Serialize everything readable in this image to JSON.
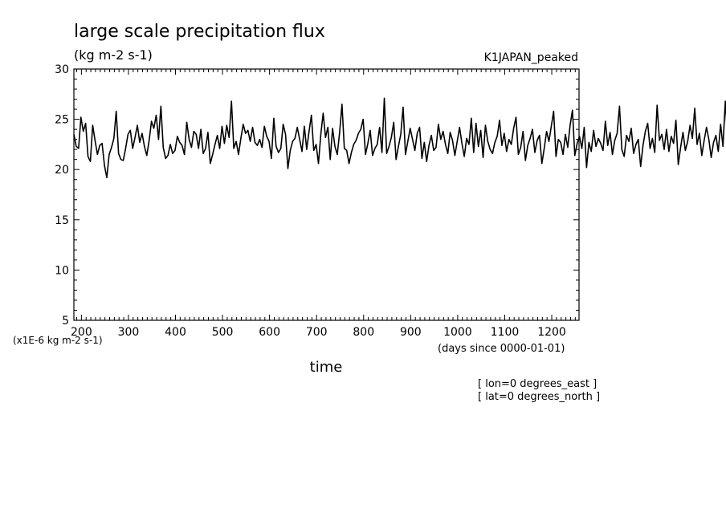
{
  "chart_data": {
    "type": "line",
    "title": "large scale precipitation flux",
    "units": "(kg m-2 s-1)",
    "dataset_label": "K1JAPAN_peaked",
    "xlabel": "time",
    "x_units": "(days since 0000-01-01)",
    "y_scale_note": "(x1E-6 kg m-2 s-1)",
    "coords": [
      "[ lon=0 degrees_east ]",
      "[ lat=0 degrees_north ]"
    ],
    "xlim": [
      184,
      1258
    ],
    "ylim": [
      5,
      30
    ],
    "x_ticks": [
      200,
      300,
      400,
      500,
      600,
      700,
      800,
      900,
      1000,
      1100,
      1200
    ],
    "x_tick_labels": [
      "200",
      "300",
      "400",
      "500",
      "600",
      "700",
      "800",
      "900",
      "1000",
      "1100",
      "1200"
    ],
    "y_ticks": [
      5,
      10,
      15,
      20,
      25,
      30
    ],
    "y_tick_labels": [
      "5",
      "10",
      "15",
      "20",
      "25",
      "30"
    ],
    "x_step": 5,
    "series": [
      {
        "values": [
          23.5,
          22.3,
          22.1,
          25.2,
          23.8,
          24.6,
          21.3,
          20.8,
          24.4,
          22.9,
          21.5,
          22.4,
          22.6,
          20.4,
          19.2,
          21.5,
          22.2,
          23.1,
          25.8,
          21.6,
          21.0,
          20.9,
          22.1,
          23.5,
          23.9,
          22.1,
          23.2,
          24.4,
          22.7,
          23.6,
          22.3,
          21.4,
          22.9,
          24.8,
          24.1,
          25.4,
          23.0,
          26.3,
          22.2,
          21.1,
          21.4,
          22.5,
          21.6,
          21.9,
          23.3,
          22.7,
          22.4,
          21.5,
          24.7,
          23.0,
          22.2,
          23.8,
          23.5,
          22.1,
          24.0,
          21.6,
          22.1,
          23.7,
          20.6,
          21.5,
          22.5,
          23.4,
          22.1,
          24.3,
          22.6,
          24.4,
          23.2,
          26.8,
          22.1,
          22.8,
          21.5,
          23.1,
          24.5,
          23.6,
          23.9,
          22.8,
          24.2,
          22.7,
          22.4,
          23.0,
          22.2,
          24.3,
          23.3,
          22.8,
          21.1,
          25.1,
          22.3,
          21.7,
          22.1,
          24.5,
          23.5,
          20.1,
          21.9,
          22.8,
          23.1,
          24.2,
          23.0,
          21.8,
          24.3,
          22.0,
          23.8,
          25.4,
          21.9,
          22.5,
          20.6,
          23.5,
          25.6,
          23.2,
          24.2,
          21.0,
          24.1,
          22.3,
          21.5,
          23.7,
          26.5,
          22.1,
          21.9,
          20.6,
          21.7,
          22.5,
          22.9,
          23.6,
          24.0,
          25.0,
          21.5,
          22.6,
          23.9,
          21.4,
          22.1,
          22.5,
          24.2,
          21.7,
          27.1,
          21.6,
          22.3,
          23.2,
          24.7,
          21.0,
          22.3,
          23.5,
          26.2,
          21.5,
          22.8,
          24.1,
          23.0,
          21.9,
          23.6,
          24.2,
          21.1,
          22.7,
          20.8,
          22.4,
          23.4,
          21.9,
          22.2,
          24.5,
          23.0,
          23.8,
          22.5,
          21.6,
          23.7,
          22.9,
          21.4,
          22.8,
          24.2,
          22.6,
          21.3,
          23.1,
          22.5,
          25.1,
          21.7,
          24.6,
          22.3,
          23.9,
          21.2,
          24.4,
          22.8,
          22.0,
          21.6,
          22.7,
          23.3,
          24.9,
          22.4,
          23.6,
          21.8,
          23.0,
          22.5,
          24.1,
          25.2,
          21.5,
          22.2,
          23.8,
          20.9,
          22.4,
          23.1,
          24.0,
          21.7,
          22.9,
          23.4,
          20.6,
          22.1,
          23.8,
          22.8,
          24.3,
          25.8,
          21.3,
          23.0,
          22.7,
          21.5,
          23.5,
          22.2,
          24.4,
          25.9,
          21.4,
          22.6,
          23.3,
          22.1,
          24.2,
          20.2,
          22.7,
          21.8,
          23.9,
          22.3,
          23.1,
          22.6,
          21.9,
          24.8,
          22.4,
          23.7,
          21.5,
          22.9,
          23.6,
          26.3,
          22.0,
          21.3,
          23.4,
          22.8,
          24.1,
          21.6,
          22.5,
          23.0,
          20.3,
          22.4,
          23.8,
          24.6,
          22.1,
          23.1,
          21.7,
          26.4,
          22.9,
          23.5,
          22.0,
          24.0,
          21.8,
          23.3,
          22.6,
          24.9,
          20.5,
          22.2,
          23.7,
          21.9,
          22.8,
          24.4,
          23.1,
          26.1,
          22.5,
          23.6,
          21.4,
          22.9,
          24.2,
          23.0,
          21.2,
          22.7,
          23.4,
          21.8,
          24.5,
          22.3,
          26.8,
          23.0,
          21.6,
          22.4,
          23.7,
          24.3,
          22.1,
          21.5,
          23.8,
          22.6,
          24.0,
          21.3,
          22.8,
          23.5,
          26.9,
          22.2,
          24.1,
          21.7,
          23.2,
          20.0,
          22.4,
          24.6,
          21.8,
          23.3,
          22.1,
          23.9,
          24.8,
          22.6,
          20.6,
          23.0,
          25.7,
          21.5,
          22.5,
          24.3,
          23.4,
          22.1,
          23.7,
          24.5,
          21.4,
          22.8,
          23.2
        ]
      }
    ]
  }
}
